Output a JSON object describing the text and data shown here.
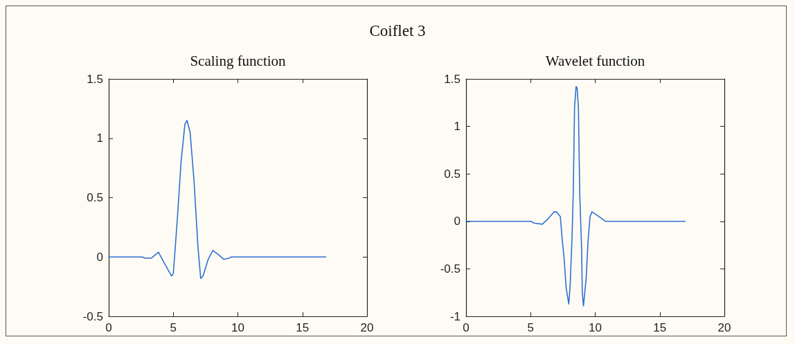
{
  "chart_data": [
    {
      "type": "line",
      "title": "Scaling function",
      "annotations": [
        "Coiflet 3"
      ],
      "marker": "none",
      "line_style": "solid",
      "grid": false,
      "xlim": [
        0,
        20
      ],
      "xticks": [
        0,
        5,
        10,
        15,
        20
      ],
      "ylim": [
        -0.5,
        1.5
      ],
      "yticks": [
        -0.5,
        0,
        0.5,
        1,
        1.5
      ],
      "x": [
        0,
        2.6,
        2.8,
        3.3,
        3.85,
        4.3,
        4.86,
        5.0,
        5.3,
        5.6,
        5.9,
        6.06,
        6.3,
        6.6,
        6.9,
        7.12,
        7.3,
        7.7,
        8.06,
        8.5,
        8.9,
        9.3,
        9.5,
        16.8
      ],
      "series": [
        {
          "color": "#2f6fd6",
          "values": [
            0,
            0,
            -0.01,
            -0.01,
            0.04,
            -0.05,
            -0.16,
            -0.14,
            0.3,
            0.8,
            1.12,
            1.15,
            1.05,
            0.65,
            0.1,
            -0.18,
            -0.16,
            -0.02,
            0.055,
            0.02,
            -0.02,
            -0.01,
            0,
            0
          ]
        }
      ]
    },
    {
      "type": "line",
      "title": "Wavelet function",
      "marker": "none",
      "line_style": "solid",
      "grid": false,
      "xlim": [
        0,
        20
      ],
      "xticks": [
        0,
        5,
        10,
        15,
        20
      ],
      "ylim": [
        -1,
        1.5
      ],
      "yticks": [
        -1,
        -0.5,
        0,
        0.5,
        1,
        1.5
      ],
      "x": [
        0,
        5,
        5.3,
        5.9,
        6.3,
        6.82,
        7.0,
        7.3,
        7.45,
        7.6,
        7.75,
        7.95,
        8.05,
        8.2,
        8.3,
        8.4,
        8.52,
        8.6,
        8.7,
        8.8,
        8.95,
        9.0,
        9.09,
        9.3,
        9.45,
        9.6,
        9.75,
        10.2,
        10.8,
        11.8,
        16.96
      ],
      "series": [
        {
          "color": "#2f6fd6",
          "values": [
            0,
            0,
            -0.02,
            -0.03,
            0.02,
            0.1,
            0.1,
            0.05,
            -0.2,
            -0.4,
            -0.7,
            -0.87,
            -0.7,
            -0.2,
            0.3,
            1.2,
            1.42,
            1.4,
            1.2,
            0.3,
            -0.3,
            -0.75,
            -0.89,
            -0.6,
            -0.2,
            0.05,
            0.1,
            0.06,
            0,
            0,
            0
          ]
        }
      ]
    }
  ]
}
